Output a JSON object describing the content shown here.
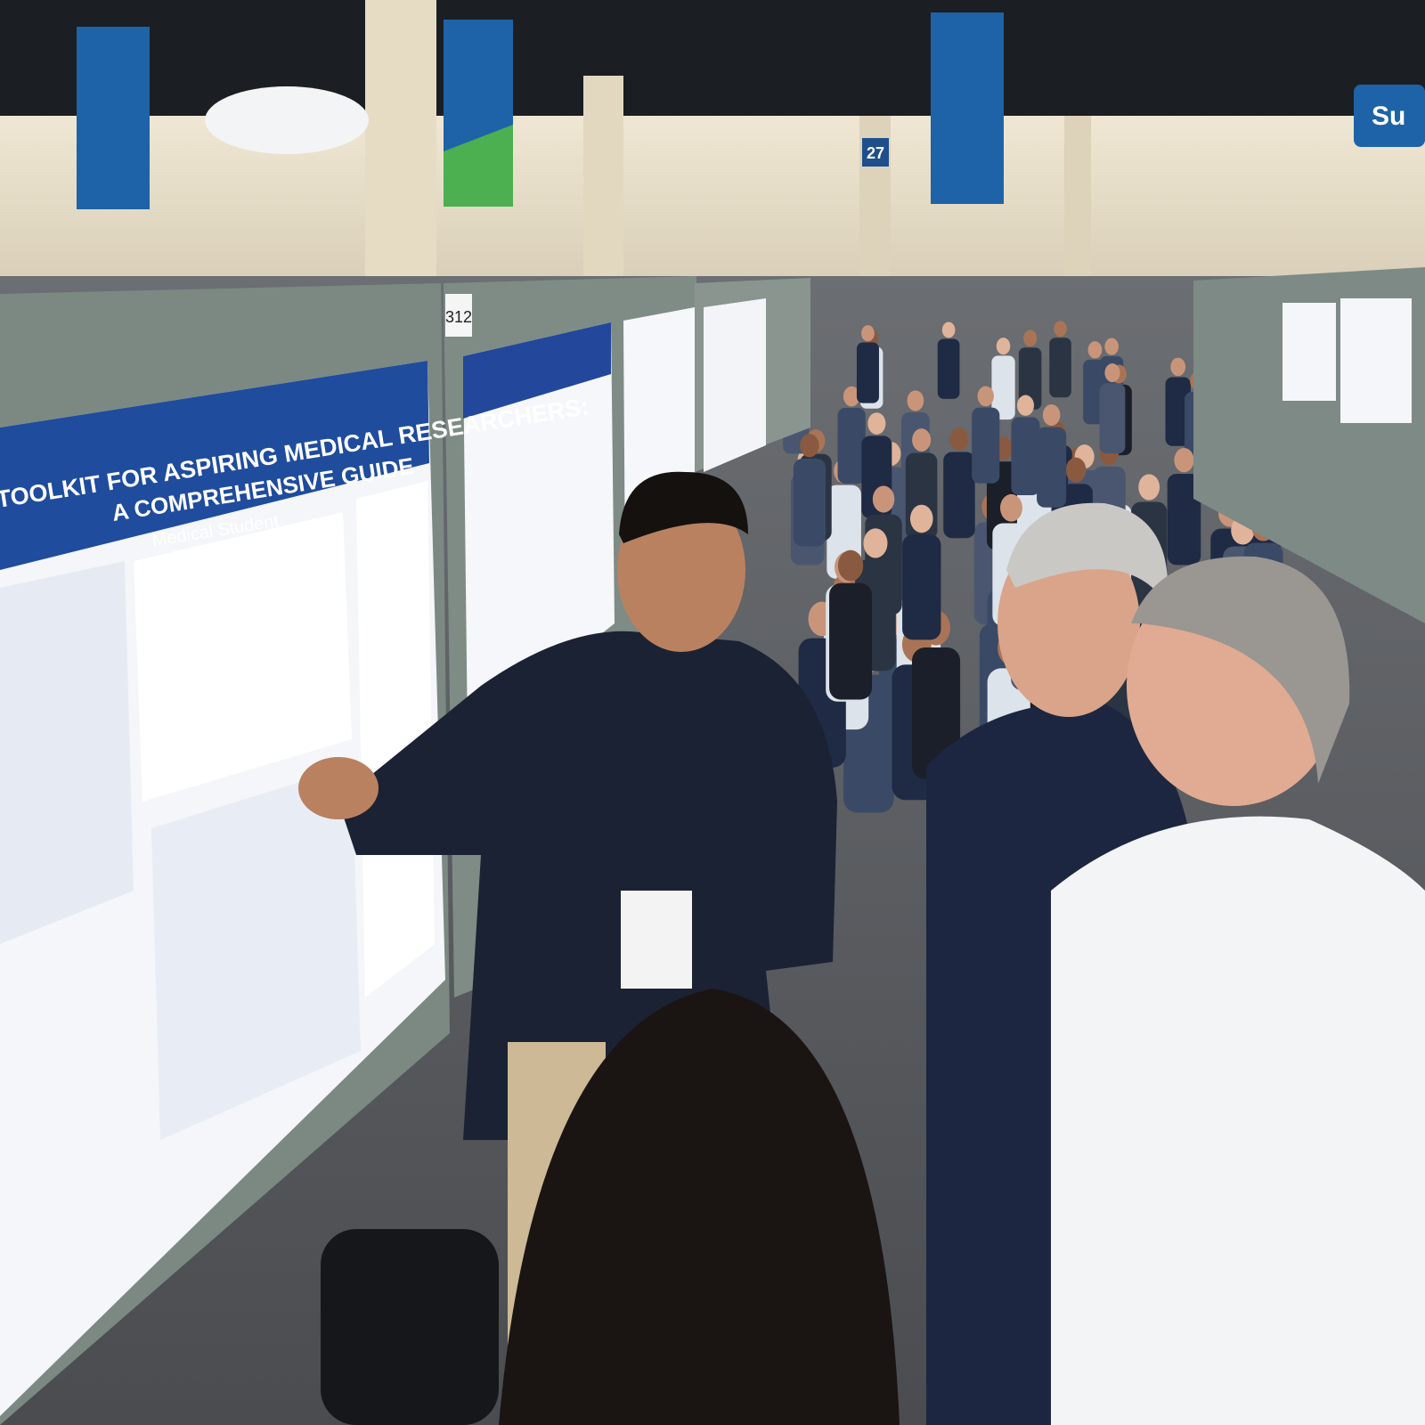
{
  "scene": {
    "poster": {
      "title_line1": "ESSENTIAL TOOLKIT FOR ASPIRING MEDICAL RESEARCHERS:",
      "title_line2": "A COMPREHENSIVE GUIDE",
      "author": "Medical Student"
    },
    "board_number": "312",
    "aisle_sign": "27",
    "banner_fragment": "Su"
  }
}
